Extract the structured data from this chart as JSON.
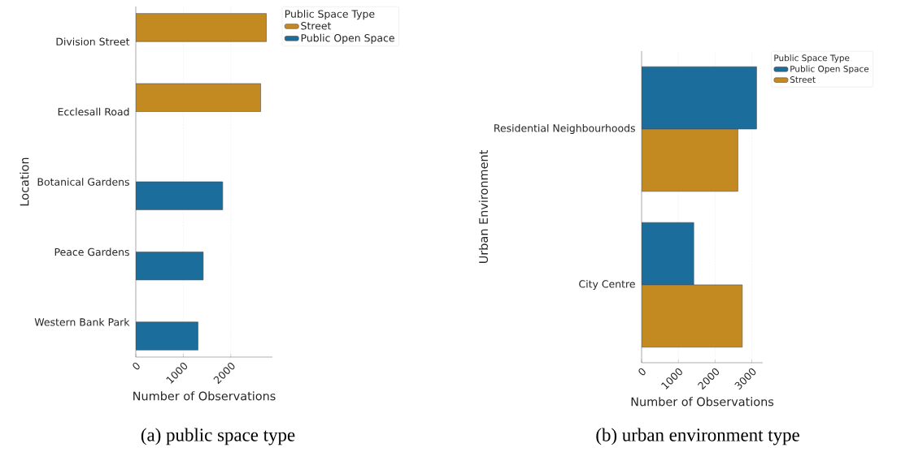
{
  "chart_data": [
    {
      "type": "bar",
      "orientation": "horizontal",
      "xlabel": "Number of Observations",
      "ylabel": "Location",
      "legend_title": "Public Space Type",
      "legend": "top right",
      "grid": "x",
      "categories": [
        "Division Street",
        "Ecclesall Road",
        "Botanical Gardens",
        "Peace Gardens",
        "Western Bank Park"
      ],
      "xlim": [
        0,
        2877
      ],
      "xticks": [
        0,
        1000,
        2000
      ],
      "series": [
        {
          "name": "Street",
          "color": "#c48a22",
          "values": [
            2750,
            2630,
            null,
            null,
            null
          ]
        },
        {
          "name": "Public Open Space",
          "color": "#1b6d9c",
          "values": [
            null,
            null,
            1830,
            1420,
            1310
          ]
        }
      ],
      "annotations": [
        "(a) public space type"
      ]
    },
    {
      "type": "bar",
      "orientation": "horizontal",
      "xlabel": "Number of Observations",
      "ylabel": "Urban Environment",
      "legend_title": "Public Space Type",
      "legend": "top right",
      "grid": "x",
      "categories": [
        "Residential Neighbourhoods",
        "City Centre"
      ],
      "xlim": [
        0,
        3298
      ],
      "xticks": [
        0,
        1000,
        2000,
        3000
      ],
      "series": [
        {
          "name": "Public Open Space",
          "color": "#1b6d9c",
          "values": [
            3130,
            1420
          ]
        },
        {
          "name": "Street",
          "color": "#c48a22",
          "values": [
            2620,
            2740
          ]
        }
      ],
      "annotations": [
        "(b) urban environment type"
      ]
    }
  ]
}
